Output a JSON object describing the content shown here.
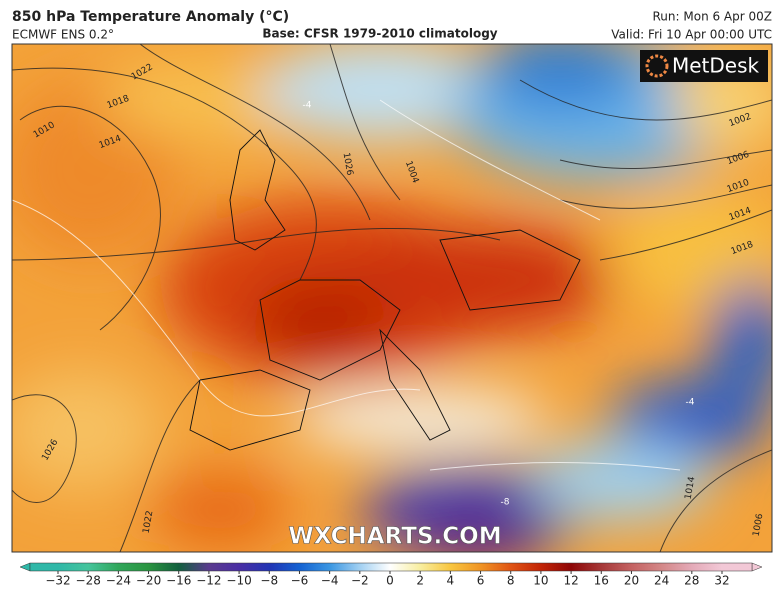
{
  "header": {
    "title": "850 hPa Temperature Anomaly (°C)",
    "model": "ECMWF ENS 0.2°",
    "base": "Base: CFSR 1979-2010 climatology",
    "run": "Run: Mon 6 Apr 00Z",
    "valid": "Valid: Fri 10 Apr 00:00 UTC"
  },
  "logo": "MetDesk",
  "watermark": "WXCHARTS.COM",
  "isobar_labels": [
    "1022",
    "1018",
    "1010",
    "1014",
    "1026",
    "1004",
    "1002",
    "1006",
    "1010",
    "1014",
    "1018",
    "1026",
    "1022",
    "1014",
    "1006"
  ],
  "anomaly_labels": [
    "-4",
    "-4",
    "-8"
  ],
  "colorbar": {
    "ticks": [
      "−32",
      "−28",
      "−24",
      "−20",
      "−16",
      "−12",
      "−10",
      "−8",
      "−6",
      "−4",
      "−2",
      "0",
      "2",
      "4",
      "6",
      "8",
      "10",
      "12",
      "16",
      "20",
      "24",
      "28",
      "32"
    ],
    "colors": [
      "#2fb8a8",
      "#45c49c",
      "#30a65a",
      "#2a9440",
      "#12603e",
      "#5a3a8e",
      "#4a2ea4",
      "#2234b4",
      "#1462d2",
      "#3a96e2",
      "#a2d0f2",
      "#ffffff",
      "#f8eea0",
      "#f8c640",
      "#f09424",
      "#e05414",
      "#c22406",
      "#8e0606",
      "#a63838",
      "#c46262",
      "#d48888",
      "#e4aab8",
      "#f2c8d6"
    ]
  }
}
